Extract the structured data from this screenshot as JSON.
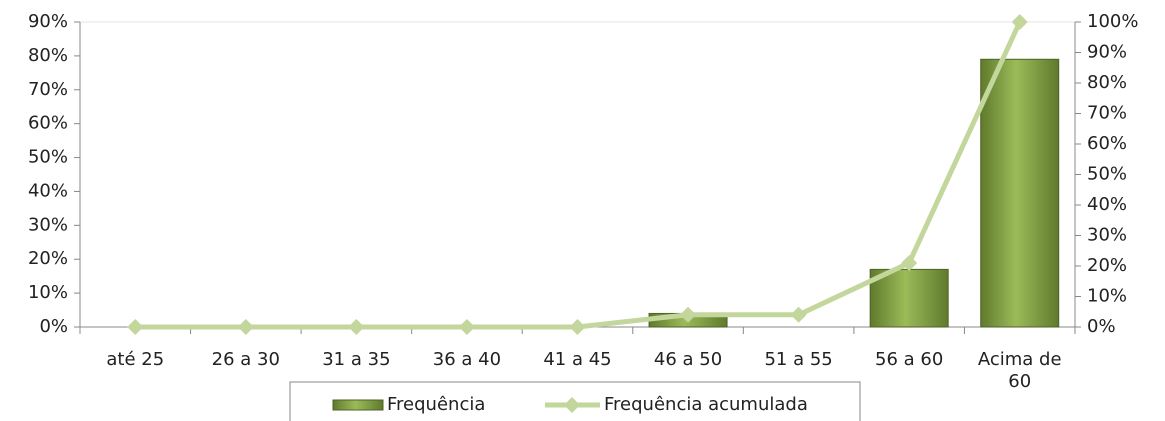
{
  "chart_data": {
    "type": "bar_line",
    "categories": [
      "até 25",
      "26 a 30",
      "31 a 35",
      "36 a 40",
      "41 a 45",
      "46 a 50",
      "51 a 55",
      "56 a 60",
      "Acima de 60"
    ],
    "series": [
      {
        "name": "Frequência",
        "type": "bar",
        "color": "#77933c",
        "values": [
          0,
          0,
          0,
          0,
          0,
          4,
          0,
          17,
          79
        ]
      },
      {
        "name": "Frequência acumulada",
        "type": "line",
        "axis": "y2",
        "color": "#c3d69b",
        "values": [
          0,
          0,
          0,
          0,
          0,
          4,
          4,
          21,
          100
        ]
      }
    ],
    "ylim": [
      0,
      90
    ],
    "yticks": [
      {
        "value": 0,
        "label": "0%"
      },
      {
        "value": 10,
        "label": "10%"
      },
      {
        "value": 20,
        "label": "20%"
      },
      {
        "value": 30,
        "label": "30%"
      },
      {
        "value": 40,
        "label": "40%"
      },
      {
        "value": 50,
        "label": "50%"
      },
      {
        "value": 60,
        "label": "60%"
      },
      {
        "value": 70,
        "label": "70%"
      },
      {
        "value": 80,
        "label": "80%"
      },
      {
        "value": 90,
        "label": "90%"
      }
    ],
    "y2lim": [
      0,
      100
    ],
    "y2ticks": [
      {
        "value": 0,
        "label": "0%"
      },
      {
        "value": 10,
        "label": "10%"
      },
      {
        "value": 20,
        "label": "20%"
      },
      {
        "value": 30,
        "label": "30%"
      },
      {
        "value": 40,
        "label": "40%"
      },
      {
        "value": 50,
        "label": "50%"
      },
      {
        "value": 60,
        "label": "60%"
      },
      {
        "value": 70,
        "label": "70%"
      },
      {
        "value": 80,
        "label": "80%"
      },
      {
        "value": 90,
        "label": "90%"
      },
      {
        "value": 100,
        "label": "100%"
      }
    ],
    "grid": false,
    "legend": "bottom"
  }
}
